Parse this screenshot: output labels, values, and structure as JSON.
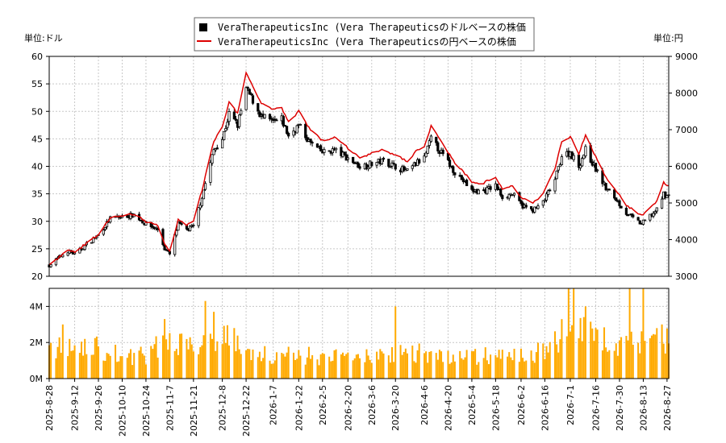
{
  "chart_data": {
    "type": "candlestick",
    "legend": [
      {
        "label": "VeraTherapeuticsInc (Vera Therapeuticsのドルベースの株価",
        "color": "#000000",
        "marker": "square"
      },
      {
        "label": "VeraTherapeuticsInc (Vera Therapeuticsの円ベースの株価",
        "color": "#dd0000",
        "marker": "line"
      }
    ],
    "left_unit": "単位:ドル",
    "right_unit": "単位:円",
    "price_axis_left": {
      "min": 20,
      "max": 60,
      "ticks": [
        20,
        25,
        30,
        35,
        40,
        45,
        50,
        55,
        60
      ]
    },
    "price_axis_right": {
      "min": 3000,
      "max": 9000,
      "ticks": [
        3000,
        4000,
        5000,
        6000,
        7000,
        8000,
        9000
      ]
    },
    "volume_axis": {
      "min": 0,
      "max": 5000000,
      "ticks": [
        0,
        2000000,
        4000000
      ],
      "tick_labels": [
        "0M",
        "2M",
        "4M"
      ]
    },
    "x_labels": [
      "2025-8-28",
      "2025-9-12",
      "2025-9-26",
      "2025-10-10",
      "2025-10-24",
      "2025-11-7",
      "2025-11-21",
      "2025-12-8",
      "2025-12-22",
      "2026-1-7",
      "2026-1-22",
      "2026-2-5",
      "2026-2-20",
      "2026-3-6",
      "2026-3-20",
      "2026-4-6",
      "2026-4-20",
      "2026-5-4",
      "2026-5-18",
      "2026-6-2",
      "2026-6-16",
      "2026-7-1",
      "2026-7-16",
      "2026-7-30",
      "2026-8-13",
      "2026-8-27"
    ],
    "x_range": [
      "2025-8-28",
      "2026-8-28"
    ],
    "close_usd_key_points": [
      [
        "2025-8-28",
        22.0
      ],
      [
        "2025-9-1",
        23.0
      ],
      [
        "2025-9-8",
        24.6
      ],
      [
        "2025-9-12",
        24.0
      ],
      [
        "2025-9-19",
        25.8
      ],
      [
        "2025-9-26",
        27.5
      ],
      [
        "2025-10-3",
        30.5
      ],
      [
        "2025-10-10",
        30.8
      ],
      [
        "2025-10-17",
        31.2
      ],
      [
        "2025-10-24",
        29.5
      ],
      [
        "2025-10-31",
        28.5
      ],
      [
        "2025-11-4",
        25.0
      ],
      [
        "2025-11-7",
        24.0
      ],
      [
        "2025-11-12",
        29.5
      ],
      [
        "2025-11-17",
        28.5
      ],
      [
        "2025-11-21",
        29.0
      ],
      [
        "2025-11-26",
        34.5
      ],
      [
        "2025-12-3",
        43.0
      ],
      [
        "2025-12-8",
        45.0
      ],
      [
        "2025-12-12",
        49.5
      ],
      [
        "2025-12-17",
        47.5
      ],
      [
        "2025-12-22",
        54.0
      ],
      [
        "2025-12-26",
        52.0
      ],
      [
        "2025-12-31",
        49.0
      ],
      [
        "2026-1-7",
        48.0
      ],
      [
        "2026-1-12",
        48.5
      ],
      [
        "2026-1-16",
        45.5
      ],
      [
        "2026-1-22",
        47.5
      ],
      [
        "2026-1-28",
        44.5
      ],
      [
        "2026-2-5",
        42.5
      ],
      [
        "2026-2-12",
        43.0
      ],
      [
        "2026-2-20",
        41.5
      ],
      [
        "2026-2-27",
        40.0
      ],
      [
        "2026-3-6",
        40.5
      ],
      [
        "2026-3-13",
        41.0
      ],
      [
        "2026-3-20",
        40.0
      ],
      [
        "2026-3-27",
        39.0
      ],
      [
        "2026-4-1",
        40.5
      ],
      [
        "2026-4-6",
        41.5
      ],
      [
        "2026-4-10",
        45.0
      ],
      [
        "2026-4-17",
        42.0
      ],
      [
        "2026-4-24",
        39.0
      ],
      [
        "2026-4-30",
        37.0
      ],
      [
        "2026-5-4",
        35.5
      ],
      [
        "2026-5-11",
        35.5
      ],
      [
        "2026-5-18",
        36.5
      ],
      [
        "2026-5-22",
        34.5
      ],
      [
        "2026-5-28",
        35.0
      ],
      [
        "2026-6-2",
        33.0
      ],
      [
        "2026-6-8",
        32.0
      ],
      [
        "2026-6-12",
        32.5
      ],
      [
        "2026-6-16",
        34.0
      ],
      [
        "2026-6-22",
        37.5
      ],
      [
        "2026-6-26",
        42.0
      ],
      [
        "2026-7-1",
        42.5
      ],
      [
        "2026-7-6",
        40.0
      ],
      [
        "2026-7-10",
        43.0
      ],
      [
        "2026-7-16",
        39.5
      ],
      [
        "2026-7-22",
        36.0
      ],
      [
        "2026-7-28",
        34.0
      ],
      [
        "2026-8-3",
        31.5
      ],
      [
        "2026-8-7",
        30.5
      ],
      [
        "2026-8-12",
        29.5
      ],
      [
        "2026-8-17",
        31.0
      ],
      [
        "2026-8-21",
        32.0
      ],
      [
        "2026-8-25",
        35.0
      ],
      [
        "2026-8-28",
        34.5
      ]
    ],
    "close_jpy_key_points": [
      [
        "2025-8-28",
        3300
      ],
      [
        "2025-9-1",
        3450
      ],
      [
        "2025-9-8",
        3720
      ],
      [
        "2025-9-12",
        3650
      ],
      [
        "2025-9-19",
        3900
      ],
      [
        "2025-9-26",
        4150
      ],
      [
        "2025-10-3",
        4580
      ],
      [
        "2025-10-10",
        4650
      ],
      [
        "2025-10-17",
        4700
      ],
      [
        "2025-10-24",
        4500
      ],
      [
        "2025-10-31",
        4380
      ],
      [
        "2025-11-4",
        3850
      ],
      [
        "2025-11-7",
        3700
      ],
      [
        "2025-11-12",
        4550
      ],
      [
        "2025-11-17",
        4400
      ],
      [
        "2025-11-21",
        4480
      ],
      [
        "2025-11-26",
        5350
      ],
      [
        "2025-12-3",
        6700
      ],
      [
        "2025-12-8",
        7050
      ],
      [
        "2025-12-12",
        7750
      ],
      [
        "2025-12-17",
        7450
      ],
      [
        "2025-12-22",
        8550
      ],
      [
        "2025-12-26",
        8200
      ],
      [
        "2025-12-31",
        7700
      ],
      [
        "2026-1-7",
        7550
      ],
      [
        "2026-1-12",
        7600
      ],
      [
        "2026-1-16",
        7200
      ],
      [
        "2026-1-22",
        7500
      ],
      [
        "2026-1-28",
        7050
      ],
      [
        "2026-2-5",
        6700
      ],
      [
        "2026-2-12",
        6800
      ],
      [
        "2026-2-20",
        6500
      ],
      [
        "2026-2-27",
        6250
      ],
      [
        "2026-3-6",
        6350
      ],
      [
        "2026-3-13",
        6450
      ],
      [
        "2026-3-20",
        6300
      ],
      [
        "2026-3-27",
        6150
      ],
      [
        "2026-4-1",
        6400
      ],
      [
        "2026-4-6",
        6550
      ],
      [
        "2026-4-10",
        7100
      ],
      [
        "2026-4-17",
        6600
      ],
      [
        "2026-4-24",
        6100
      ],
      [
        "2026-4-30",
        5800
      ],
      [
        "2026-5-4",
        5550
      ],
      [
        "2026-5-11",
        5550
      ],
      [
        "2026-5-18",
        5700
      ],
      [
        "2026-5-22",
        5400
      ],
      [
        "2026-5-28",
        5450
      ],
      [
        "2026-6-2",
        5150
      ],
      [
        "2026-6-8",
        5000
      ],
      [
        "2026-6-12",
        5100
      ],
      [
        "2026-6-16",
        5350
      ],
      [
        "2026-6-22",
        5950
      ],
      [
        "2026-6-26",
        6700
      ],
      [
        "2026-7-1",
        6800
      ],
      [
        "2026-7-6",
        6350
      ],
      [
        "2026-7-10",
        6850
      ],
      [
        "2026-7-16",
        6250
      ],
      [
        "2026-7-22",
        5700
      ],
      [
        "2026-7-28",
        5350
      ],
      [
        "2026-8-3",
        4950
      ],
      [
        "2026-8-7",
        4800
      ],
      [
        "2026-8-12",
        4650
      ],
      [
        "2026-8-17",
        4900
      ],
      [
        "2026-8-21",
        5050
      ],
      [
        "2026-8-25",
        5550
      ],
      [
        "2026-8-28",
        5450
      ]
    ],
    "volume_key_points": [
      [
        "2025-8-28",
        1800000
      ],
      [
        "2025-9-12",
        1600000
      ],
      [
        "2025-9-26",
        1700000
      ],
      [
        "2025-10-10",
        1200000
      ],
      [
        "2025-10-24",
        1300000
      ],
      [
        "2025-11-7",
        2200000
      ],
      [
        "2025-11-21",
        2000000
      ],
      [
        "2025-12-8",
        2500000
      ],
      [
        "2025-12-22",
        1500000
      ],
      [
        "2026-1-7",
        1300000
      ],
      [
        "2026-1-22",
        1300000
      ],
      [
        "2026-2-5",
        1200000
      ],
      [
        "2026-2-20",
        1200000
      ],
      [
        "2026-3-6",
        1200000
      ],
      [
        "2026-3-20",
        1500000
      ],
      [
        "2026-4-6",
        1400000
      ],
      [
        "2026-4-20",
        1200000
      ],
      [
        "2026-5-4",
        1200000
      ],
      [
        "2026-5-18",
        1300000
      ],
      [
        "2026-6-2",
        1200000
      ],
      [
        "2026-6-16",
        1600000
      ],
      [
        "2026-7-1",
        2800000
      ],
      [
        "2026-7-16",
        2200000
      ],
      [
        "2026-7-30",
        1800000
      ],
      [
        "2026-8-13",
        2000000
      ],
      [
        "2026-8-27",
        2200000
      ]
    ],
    "volume_spikes": [
      [
        "2025-9-5",
        3000000
      ],
      [
        "2025-11-4",
        3300000
      ],
      [
        "2025-11-28",
        4300000
      ],
      [
        "2025-12-3",
        3700000
      ],
      [
        "2025-12-15",
        2800000
      ],
      [
        "2026-3-20",
        4000000
      ],
      [
        "2026-6-30",
        5000000
      ],
      [
        "2026-7-3",
        5100000
      ],
      [
        "2026-7-10",
        4000000
      ],
      [
        "2026-8-5",
        5000000
      ],
      [
        "2026-8-13",
        6000000
      ]
    ],
    "colors": {
      "candle": "#000000",
      "jpy_line": "#dd0000",
      "volume": "#ffaa00",
      "grid": "#c8c8c8",
      "axis": "#000000"
    }
  }
}
